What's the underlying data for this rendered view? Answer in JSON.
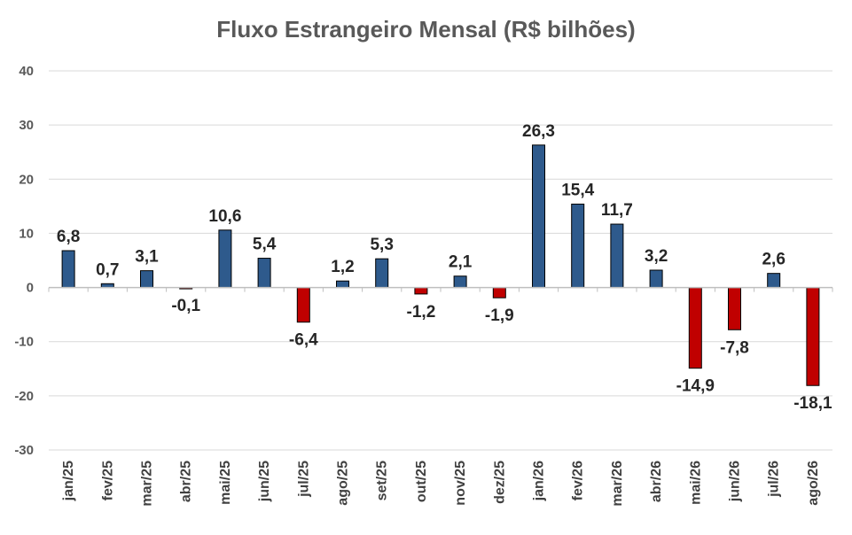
{
  "chart_data": {
    "type": "bar",
    "title": "Fluxo Estrangeiro Mensal (R$ bilhões)",
    "xlabel": "",
    "ylabel": "",
    "ylim": [
      -30,
      40
    ],
    "yticks": [
      40,
      30,
      20,
      10,
      0,
      -10,
      -20,
      -30
    ],
    "grid": true,
    "legend": "none",
    "categories": [
      "jan/25",
      "fev/25",
      "mar/25",
      "abr/25",
      "mai/25",
      "jun/25",
      "jul/25",
      "ago/25",
      "set/25",
      "out/25",
      "nov/25",
      "dez/25",
      "jan/26",
      "fev/26",
      "mar/26",
      "abr/26",
      "mai/26",
      "jun/26",
      "jul/26",
      "ago/26"
    ],
    "values": [
      6.8,
      0.7,
      3.1,
      -0.1,
      10.6,
      5.4,
      -6.4,
      1.2,
      5.3,
      -1.2,
      2.1,
      -1.9,
      26.3,
      15.4,
      11.7,
      3.2,
      -14.9,
      -7.8,
      2.6,
      -18.1
    ],
    "value_labels": [
      "6,8",
      "0,7",
      "3,1",
      "-0,1",
      "10,6",
      "5,4",
      "-6,4",
      "1,2",
      "5,3",
      "-1,2",
      "2,1",
      "-1,9",
      "26,3",
      "15,4",
      "11,7",
      "3,2",
      "-14,9",
      "-7,8",
      "2,6",
      "-18,1"
    ],
    "colors": {
      "positive": "#2E5A8C",
      "negative": "#C00000",
      "grid": "#D9D9D9",
      "axis": "#BFBFBF"
    }
  }
}
